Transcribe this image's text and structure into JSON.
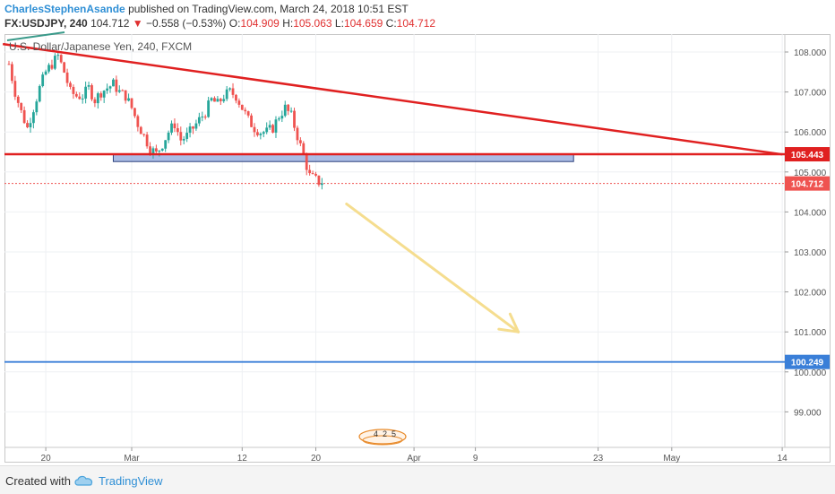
{
  "header": {
    "author": "CharlesStephenAsande",
    "published": "published on TradingView.com, March 24, 2018 10:51 EST",
    "symbol": "FX:USDJPY, 240",
    "last": "104.712",
    "change_arrow": "▼",
    "change": "−0.558 (−0.53%)",
    "o_label": "O:",
    "o_val": "104.909",
    "h_label": "H:",
    "h_val": "105.063",
    "l_label": "L:",
    "l_val": "104.659",
    "c_label": "C:",
    "c_val": "104.712"
  },
  "instrument_title": "U.S. Dollar/Japanese Yen, 240, FXCM",
  "footer": {
    "created_with": "Created with",
    "brand": "TradingView",
    "logo_icon": "tradingview-cloud-icon"
  },
  "colors": {
    "up": "#26a69a",
    "down": "#ef5350",
    "trendline": "#e02020",
    "target_line": "#3a7fd8",
    "projection_arrow": "#f5dd8f",
    "zone_fill": "#8fa6dc"
  },
  "chart_data": {
    "type": "candlestick",
    "title": "U.S. Dollar/Japanese Yen, 240, FXCM",
    "y_axis": {
      "range": [
        98.1,
        108.35
      ],
      "ticks": [
        "108.000",
        "107.000",
        "106.000",
        "105.000",
        "104.000",
        "103.000",
        "102.000",
        "101.000",
        "100.000",
        "99.000"
      ],
      "position": "right"
    },
    "x_axis": {
      "unit": "trading days from Feb 15, 2018",
      "ticks": [
        {
          "label": "20",
          "x": 3
        },
        {
          "label": "Mar",
          "x": 10
        },
        {
          "label": "12",
          "x": 19
        },
        {
          "label": "20",
          "x": 25
        },
        {
          "label": "Apr",
          "x": 33
        },
        {
          "label": "9",
          "x": 38
        },
        {
          "label": "23",
          "x": 48
        },
        {
          "label": "May",
          "x": 54
        },
        {
          "label": "14",
          "x": 63
        }
      ]
    },
    "price_labels": [
      {
        "value": "105.443",
        "price": 105.443,
        "color": "#e02020"
      },
      {
        "value": "104.712",
        "price": 104.712,
        "color": "#ef5350"
      },
      {
        "value": "100.249",
        "price": 100.249,
        "color": "#3a7fd8"
      }
    ],
    "candle_close_path": [
      [
        0,
        107.7
      ],
      [
        0.5,
        107.0
      ],
      [
        1,
        106.5
      ],
      [
        1.5,
        106.1
      ],
      [
        2,
        106.6
      ],
      [
        2.5,
        107.1
      ],
      [
        3,
        107.5
      ],
      [
        3.5,
        107.7
      ],
      [
        4,
        107.9
      ],
      [
        4.5,
        107.5
      ],
      [
        5,
        107.0
      ],
      [
        5.5,
        106.9
      ],
      [
        6,
        106.9
      ],
      [
        6.5,
        107.1
      ],
      [
        7,
        106.8
      ],
      [
        7.5,
        107.0
      ],
      [
        8,
        107.1
      ],
      [
        8.5,
        107.2
      ],
      [
        9,
        107.0
      ],
      [
        9.5,
        106.9
      ],
      [
        10,
        106.6
      ],
      [
        10.5,
        106.2
      ],
      [
        11,
        105.9
      ],
      [
        11.5,
        105.6
      ],
      [
        12,
        105.45
      ],
      [
        12.5,
        105.7
      ],
      [
        13,
        106.0
      ],
      [
        13.5,
        106.2
      ],
      [
        14,
        105.8
      ],
      [
        14.5,
        105.9
      ],
      [
        15,
        106.1
      ],
      [
        15.5,
        106.3
      ],
      [
        16,
        106.5
      ],
      [
        16.5,
        106.8
      ],
      [
        17,
        106.7
      ],
      [
        17.5,
        106.9
      ],
      [
        18,
        107.0
      ],
      [
        18.5,
        106.9
      ],
      [
        19,
        106.6
      ],
      [
        19.5,
        106.3
      ],
      [
        20,
        106.1
      ],
      [
        20.5,
        106.0
      ],
      [
        21,
        106.0
      ],
      [
        21.5,
        106.1
      ],
      [
        22,
        106.4
      ],
      [
        22.5,
        106.6
      ],
      [
        23,
        106.4
      ],
      [
        23.5,
        105.9
      ],
      [
        24,
        105.4
      ],
      [
        24.5,
        104.9
      ],
      [
        25,
        104.8
      ],
      [
        25.5,
        104.7
      ]
    ],
    "drawings": {
      "descending_trendline": {
        "from": [
          -0.5,
          108.2
        ],
        "to": [
          63,
          105.44
        ]
      },
      "support_line": {
        "price": 105.443
      },
      "support_zone": {
        "from_x": 8.5,
        "to_x": 46,
        "low": 105.26,
        "high": 105.45
      },
      "target_line": {
        "price": 100.249
      },
      "last_price_line": {
        "price": 104.712
      },
      "projection_arrow": {
        "from": [
          27.5,
          104.2
        ],
        "to": [
          41.5,
          101.0
        ]
      }
    },
    "event_markers": [
      "4",
      "2",
      "5"
    ]
  }
}
